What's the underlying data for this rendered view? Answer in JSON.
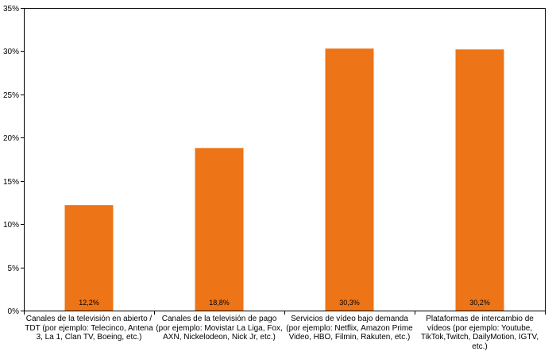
{
  "chart_data": {
    "type": "bar",
    "categories": [
      "Canales de la televisión en abierto / TDT (por ejemplo: Telecinco, Antena 3, La 1, Clan TV, Boeing, etc.)",
      "Canales de la televisión de pago (por ejemplo: Movistar La Liga, Fox, AXN, Nickelodeon, Nick Jr, etc.)",
      "Servicios de vídeo bajo demanda (por ejemplo: Netflix, Amazon Prime Video, HBO, Filmin, Rakuten, etc.)",
      "Plataformas de intercambio de vídeos (por ejemplo: Youtube, TikTok,Twitch, DailyMotion, IGTV, etc.)"
    ],
    "values": [
      12.2,
      18.8,
      30.3,
      30.2
    ],
    "data_labels": [
      "12,2%",
      "18,8%",
      "30,3%",
      "30,2%"
    ],
    "yticks": [
      "0%",
      "5%",
      "10%",
      "15%",
      "20%",
      "25%",
      "30%",
      "35%"
    ],
    "ylim": [
      0,
      35
    ],
    "bar_color": "#ed7417",
    "grid": false,
    "title": "",
    "xlabel": "",
    "ylabel": ""
  }
}
